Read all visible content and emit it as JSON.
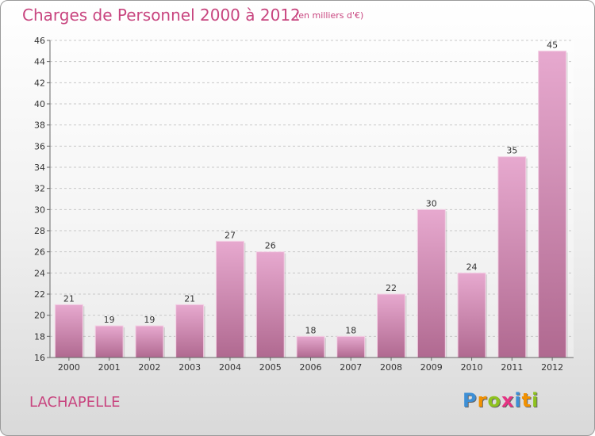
{
  "chart_data": {
    "type": "bar",
    "title": "Charges de Personnel 2000 à 2012",
    "subtitle": "(en milliers d'€)",
    "categories": [
      "2000",
      "2001",
      "2002",
      "2003",
      "2004",
      "2005",
      "2006",
      "2007",
      "2008",
      "2009",
      "2010",
      "2011",
      "2012"
    ],
    "values": [
      21,
      19,
      19,
      21,
      27,
      26,
      18,
      18,
      22,
      30,
      24,
      35,
      45
    ],
    "ylim": [
      16,
      46
    ],
    "yticks": [
      16,
      18,
      20,
      22,
      24,
      26,
      28,
      30,
      32,
      34,
      36,
      38,
      40,
      42,
      44,
      46
    ],
    "grid": true,
    "colors": {
      "bar_top": "#e7a9cf",
      "bar_bottom": "#b06990",
      "text": "#c8457f"
    }
  },
  "commune": "LACHAPELLE",
  "logo": {
    "letters": [
      "P",
      "r",
      "o",
      "x",
      "i",
      "t",
      "i"
    ],
    "colors": [
      "#3d8fd6",
      "#f29100",
      "#8ec21f",
      "#e63383",
      "#3d8fd6",
      "#f29100",
      "#8ec21f"
    ]
  }
}
